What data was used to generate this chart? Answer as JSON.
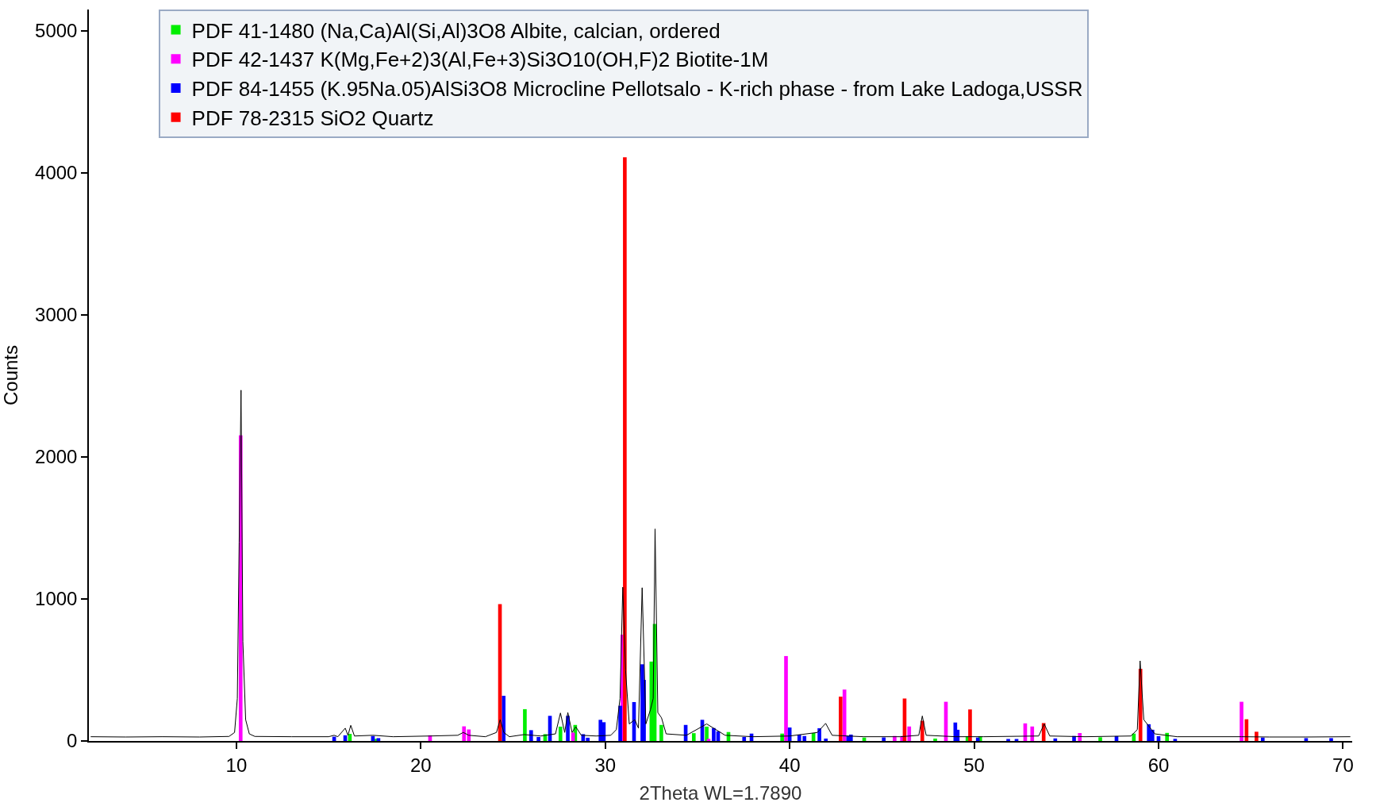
{
  "chart_data": {
    "type": "bar",
    "xlabel": "2Theta WL=1.7890",
    "ylabel": "Counts",
    "xlim": [
      2,
      70.5
    ],
    "ylim": [
      0,
      5150
    ],
    "xticks": [
      10,
      20,
      30,
      40,
      50,
      60,
      70
    ],
    "yticks": [
      0,
      1000,
      2000,
      3000,
      4000,
      5000
    ],
    "legend": "top",
    "series": [
      {
        "type": "line",
        "color": "#000000",
        "x": [
          2.1,
          4,
          6,
          8,
          9.6,
          9.9,
          10.05,
          10.15,
          10.25,
          10.35,
          10.5,
          10.7,
          11,
          13,
          15,
          15.3,
          15.5,
          15.9,
          16.05,
          16.2,
          16.4,
          17.4,
          18.5,
          20.5,
          22,
          22.3,
          22.6,
          23.5,
          24.1,
          24.3,
          24.5,
          24.8,
          25.6,
          26.5,
          27.3,
          27.57,
          27.8,
          27.97,
          28.2,
          28.4,
          28.7,
          29.5,
          30.3,
          30.6,
          30.8,
          30.95,
          31.1,
          31.3,
          31.6,
          31.8,
          32.0,
          32.2,
          32.45,
          32.6,
          32.7,
          32.85,
          33.05,
          33.3,
          34.4,
          35.5,
          36.5,
          38,
          40,
          41.5,
          41.95,
          42.3,
          44,
          46,
          47.0,
          47.19,
          47.4,
          49,
          50.5,
          53.5,
          53.8,
          54.1,
          56,
          58.5,
          58.85,
          59.0,
          59.2,
          59.5,
          59.8,
          61,
          64.5,
          66,
          68,
          70.4
        ],
        "values": [
          30,
          28,
          30,
          28,
          32,
          60,
          300,
          1400,
          2470,
          700,
          150,
          50,
          32,
          30,
          30,
          40,
          30,
          90,
          40,
          110,
          35,
          40,
          30,
          35,
          40,
          60,
          40,
          30,
          60,
          150,
          60,
          30,
          45,
          35,
          50,
          197,
          60,
          200,
          60,
          100,
          40,
          35,
          40,
          80,
          300,
          1083,
          500,
          120,
          150,
          90,
          1079,
          120,
          220,
          300,
          1493,
          200,
          163,
          50,
          40,
          120,
          40,
          30,
          35,
          60,
          124,
          40,
          30,
          30,
          40,
          176,
          40,
          30,
          30,
          35,
          120,
          35,
          30,
          35,
          80,
          564,
          150,
          100,
          50,
          30,
          30,
          28,
          28,
          30
        ]
      },
      {
        "name": "PDF 41-1480 (Na,Ca)Al(Si,Al)3O8 Albite, calcian, ordered",
        "color": "#00ee00",
        "x": [
          16.15,
          17.55,
          25.64,
          26.74,
          27.57,
          28.37,
          32.5,
          32.68,
          33.04,
          34.8,
          35.5,
          36.68,
          39.59,
          41.29,
          44.04,
          47.89,
          49.64,
          50.33,
          56.84,
          58.66,
          60.46
        ],
        "values": [
          50,
          15,
          224,
          48,
          101,
          113,
          559,
          824,
          113,
          55,
          101,
          63,
          52,
          56,
          24,
          17,
          34,
          34,
          26,
          52,
          57
        ]
      },
      {
        "name": "PDF 42-1437 K(Mg,Fe+2)3(Al,Fe+3)Si3O10(OH,F)2 Biotite-1M",
        "color": "#ff00ff",
        "x": [
          10.23,
          20.5,
          22.34,
          22.6,
          28.25,
          30.93,
          35.6,
          39.8,
          42.97,
          45.69,
          46.09,
          46.48,
          48.47,
          52.77,
          53.15,
          55.73,
          64.5
        ],
        "values": [
          2152,
          40,
          103,
          81,
          59,
          749,
          15,
          598,
          362,
          35,
          35,
          102,
          276,
          124,
          102,
          56,
          276
        ]
      },
      {
        "name": "PDF 84-1455 (K.95Na.05)AlSi3O8 Microcline Pellotsalo - K-rich phase - from Lake Ladoga,USSR",
        "color": "#0000ff",
        "x": [
          15.3,
          15.9,
          17.4,
          17.7,
          24.49,
          25.98,
          26.38,
          27.0,
          27.97,
          28.8,
          29.05,
          29.74,
          29.92,
          30.81,
          31.56,
          32.01,
          32.1,
          34.36,
          35.26,
          35.88,
          36.12,
          37.53,
          37.93,
          40.0,
          40.52,
          40.8,
          41.61,
          41.96,
          43.17,
          43.32,
          45.1,
          48.98,
          49.11,
          50.2,
          51.85,
          52.3,
          54.4,
          55.42,
          57.72,
          59.47,
          59.67,
          60.0,
          60.9,
          65.65,
          68.0,
          69.36
        ],
        "values": [
          30,
          40,
          35,
          20,
          318,
          76,
          28,
          177,
          177,
          48,
          23,
          149,
          132,
          248,
          274,
          540,
          430,
          113,
          149,
          91,
          68,
          28,
          52,
          95,
          45,
          35,
          90,
          17,
          35,
          45,
          25,
          130,
          79,
          24,
          14,
          14,
          18,
          35,
          34,
          118,
          79,
          34,
          15,
          24,
          20,
          20
        ]
      },
      {
        "name": "PDF 78-2315 SiO2 Quartz",
        "color": "#ff0000",
        "x": [
          24.29,
          31.06,
          42.76,
          46.23,
          47.19,
          49.78,
          53.77,
          59.02,
          64.77,
          65.31
        ],
        "values": [
          964,
          4110,
          312,
          299,
          142,
          222,
          126,
          508,
          153,
          65
        ]
      }
    ]
  }
}
